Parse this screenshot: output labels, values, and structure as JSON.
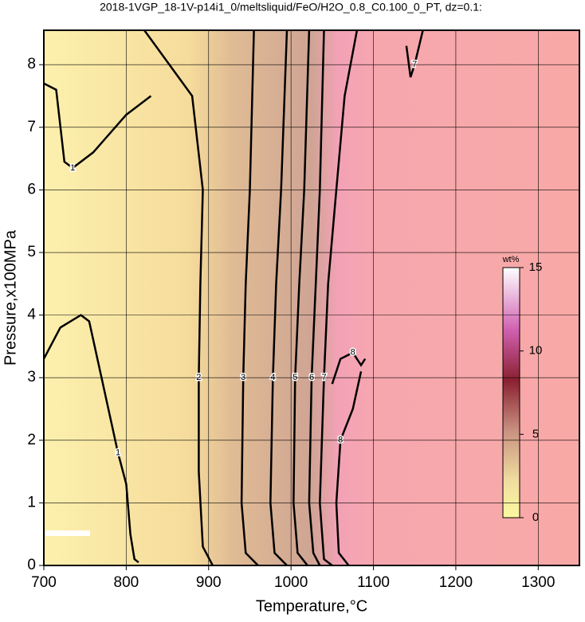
{
  "chart_data": {
    "type": "contour",
    "title": "2018-1VGP_18-1V-p14i1_0/meltsliquid/FeO/H2O_0.8_C0.100_0_PT, dz=0.1:",
    "x_label": "Temperature,°C",
    "y_label": "Pressure,x100MPa",
    "xlim": [
      700,
      1350
    ],
    "ylim": [
      0,
      8.55
    ],
    "xticks": [
      700,
      800,
      900,
      1000,
      1100,
      1200,
      1300
    ],
    "yticks": [
      0,
      1,
      2,
      3,
      4,
      5,
      6,
      7,
      8
    ],
    "grid": true,
    "colorbar": {
      "label": "wt%",
      "lim": [
        0,
        15
      ],
      "ticks": [
        0,
        5,
        10,
        15
      ]
    },
    "contours": [
      {
        "level": 1,
        "x": [
          700,
          715,
          725,
          735,
          760,
          800,
          830
        ],
        "y": [
          7.7,
          7.6,
          6.45,
          6.35,
          6.6,
          7.2,
          7.5
        ]
      },
      {
        "level": 1,
        "x": [
          700,
          720,
          745,
          755,
          770,
          790,
          800,
          805,
          810,
          815
        ],
        "y": [
          3.3,
          3.8,
          4.0,
          3.9,
          3.0,
          1.8,
          1.3,
          0.5,
          0.1,
          0.05
        ]
      },
      {
        "level": 2,
        "x": [
          822,
          880,
          893,
          890,
          888,
          888,
          893,
          905
        ],
        "y": [
          8.55,
          7.5,
          6.0,
          4.5,
          3.0,
          1.5,
          0.3,
          0.0
        ]
      },
      {
        "level": 3,
        "x": [
          955,
          950,
          945,
          942,
          940,
          945,
          960
        ],
        "y": [
          8.55,
          6.0,
          4.5,
          3.0,
          1.0,
          0.2,
          0.0
        ]
      },
      {
        "level": 4,
        "x": [
          995,
          988,
          982,
          978,
          975,
          980,
          995
        ],
        "y": [
          8.55,
          6.0,
          4.5,
          3.0,
          1.0,
          0.2,
          0.0
        ]
      },
      {
        "level": 5,
        "x": [
          1022,
          1016,
          1010,
          1005,
          1003,
          1008,
          1020
        ],
        "y": [
          8.55,
          6.0,
          4.5,
          3.0,
          1.0,
          0.2,
          0.0
        ]
      },
      {
        "level": 6,
        "x": [
          1040,
          1035,
          1030,
          1025,
          1022,
          1027,
          1035
        ],
        "y": [
          8.55,
          6.0,
          4.5,
          3.0,
          1.0,
          0.2,
          0.0
        ]
      },
      {
        "level": 7,
        "x": [
          1080,
          1065,
          1055,
          1045,
          1040,
          1035,
          1040,
          1050
        ],
        "y": [
          8.55,
          7.5,
          6.0,
          4.5,
          3.0,
          1.0,
          0.1,
          0.0
        ]
      },
      {
        "level": 8,
        "x": [
          1050,
          1060,
          1075,
          1085,
          1090
        ],
        "y": [
          2.9,
          3.3,
          3.4,
          3.2,
          3.3
        ]
      },
      {
        "level": 8,
        "x": [
          1070,
          1058,
          1055,
          1060,
          1075,
          1085
        ],
        "y": [
          0.0,
          0.2,
          1.0,
          2.0,
          2.5,
          3.1
        ]
      },
      {
        "level": 7,
        "x": [
          1140,
          1145,
          1150,
          1160
        ],
        "y": [
          8.3,
          7.8,
          8.0,
          8.55
        ]
      }
    ]
  }
}
